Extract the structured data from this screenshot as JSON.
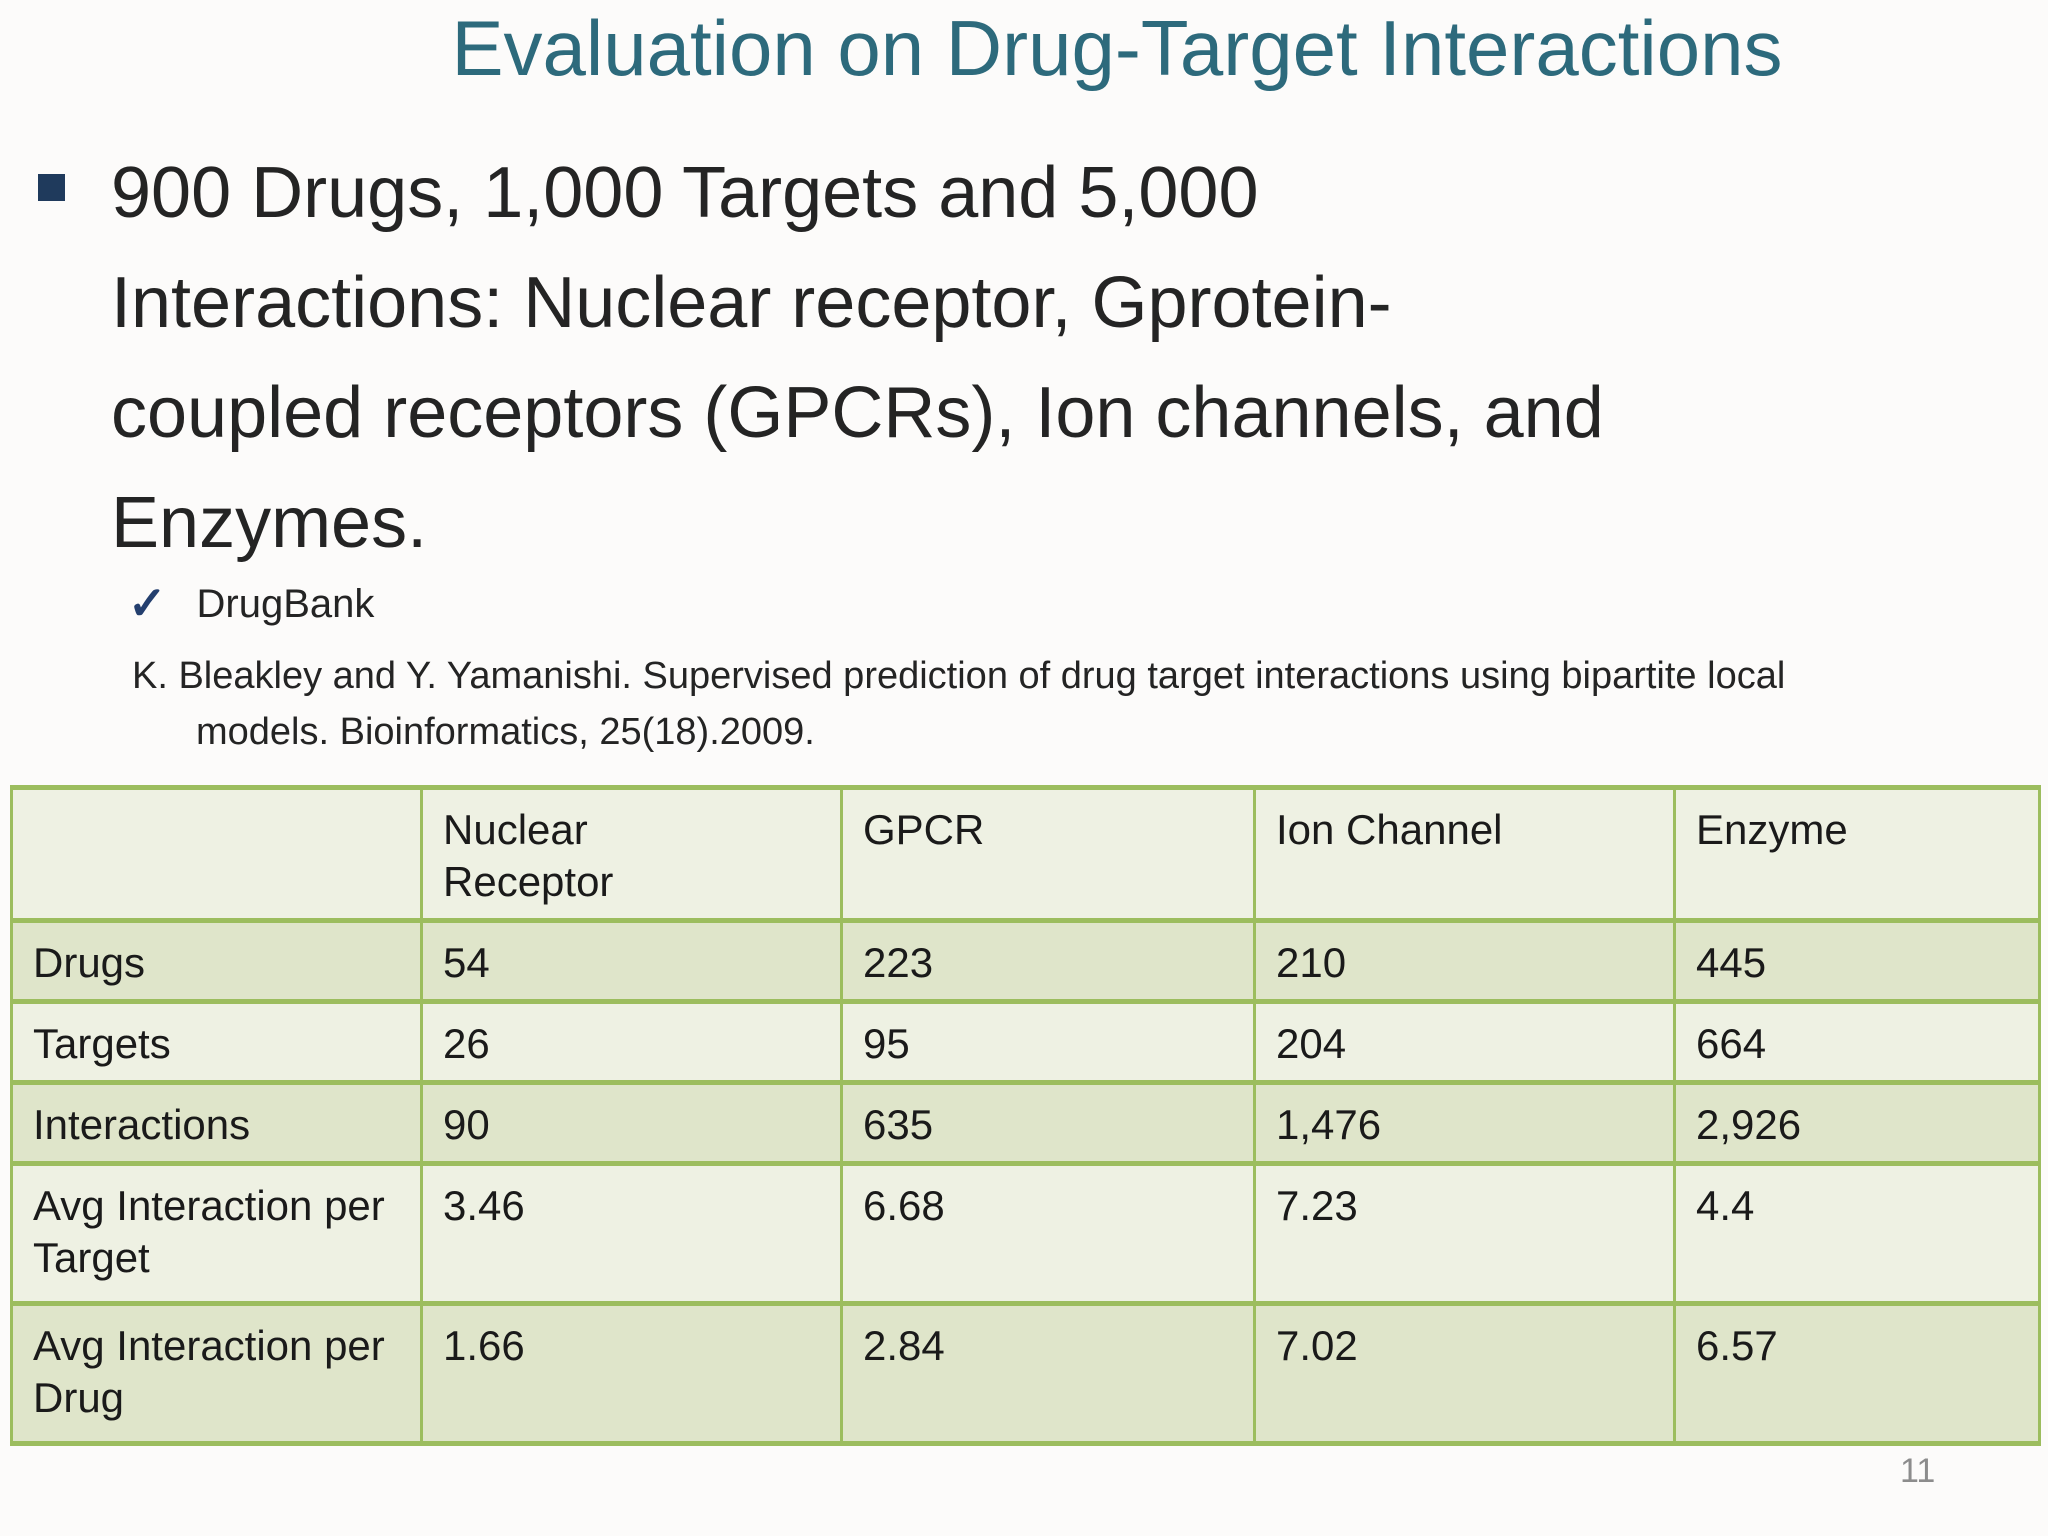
{
  "title": "Evaluation on Drug-Target Interactions",
  "bullet": {
    "lines": [
      "900 Drugs, 1,000 Targets and 5,000",
      "Interactions: Nuclear receptor, Gprotein-",
      "coupled receptors (GPCRs), Ion channels, and",
      "Enzymes."
    ]
  },
  "drugbank": {
    "check_glyph": "✓",
    "label": "DrugBank"
  },
  "citation": {
    "lines": [
      "K. Bleakley and Y. Yamanishi. Supervised prediction of drug target interactions using bipartite local",
      "models. Bioinformatics, 25(18).2009."
    ]
  },
  "table": {
    "headers": [
      "",
      "Nuclear Receptor",
      "GPCR",
      "Ion Channel",
      "Enzyme"
    ],
    "rows": [
      {
        "label": "Drugs",
        "values": [
          "54",
          "223",
          "210",
          "445"
        ]
      },
      {
        "label": "Targets",
        "values": [
          "26",
          "95",
          "204",
          "664"
        ]
      },
      {
        "label": "Interactions",
        "values": [
          "90",
          "635",
          "1,476",
          "2,926"
        ]
      },
      {
        "label": "Avg Interaction per Target",
        "values": [
          "3.46",
          "6.68",
          "7.23",
          "4.4"
        ]
      },
      {
        "label": "Avg Interaction per Drug",
        "values": [
          "1.66",
          "2.84",
          "7.02",
          "6.57"
        ]
      }
    ]
  },
  "page_number": "11",
  "colors": {
    "title_color": "#2d6a7c",
    "body_text": "#242424",
    "navy": "#1f3a5c",
    "table_border": "#9cbd5e",
    "row_light": "#eef1e3",
    "row_dark": "#dfe5ca",
    "slide_bg": "#fcfbfa",
    "pagenum_color": "#8c8c8c"
  }
}
